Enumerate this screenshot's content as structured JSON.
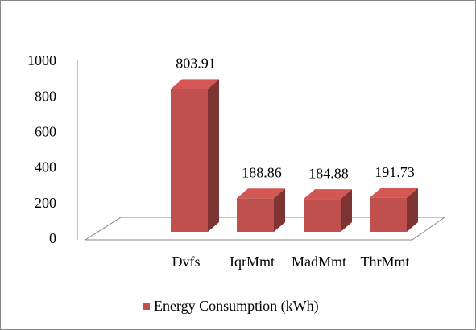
{
  "chart_data": {
    "type": "bar",
    "categories": [
      "Dvfs",
      "IqrMmt",
      "MadMmt",
      "ThrMmt"
    ],
    "series": [
      {
        "name": "Energy Consumption (kWh)",
        "color": "#c0504d",
        "values": [
          803.91,
          188.86,
          184.88,
          191.73
        ]
      }
    ],
    "ylim": [
      0,
      1000
    ],
    "yticks": [
      0,
      200,
      400,
      600,
      800,
      1000
    ],
    "legend": "bottom"
  }
}
